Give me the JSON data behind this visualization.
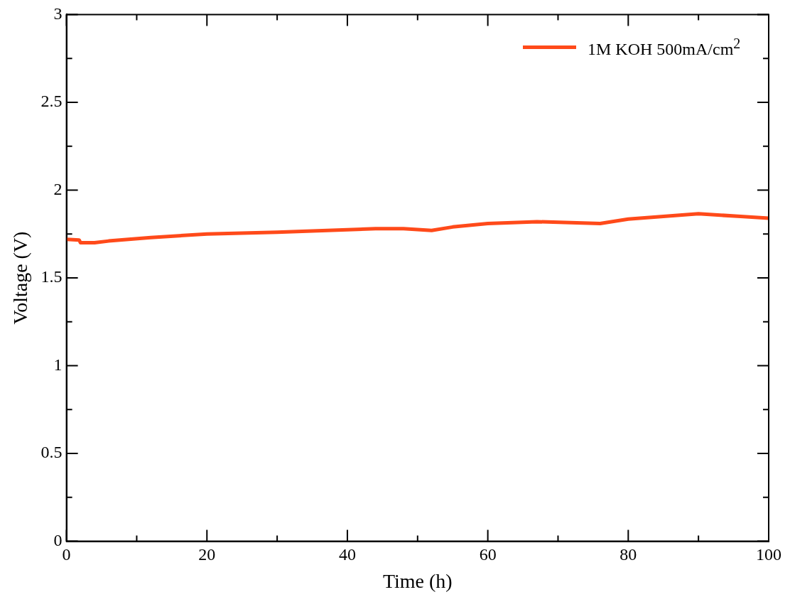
{
  "chart_data": {
    "type": "line",
    "xlabel": "Time (h)",
    "ylabel": "Voltage (V)",
    "xlim": [
      0,
      100
    ],
    "xticks": [
      0,
      {
        "value": 10,
        "label": null
      },
      20,
      {
        "value": 30,
        "label": null
      },
      40,
      {
        "value": 50,
        "label": null
      },
      60,
      {
        "value": 70,
        "label": null
      },
      80,
      {
        "value": 90,
        "label": null
      },
      100
    ],
    "ylim": [
      0,
      3
    ],
    "yticks": [
      0,
      {
        "value": 0.25,
        "label": null
      },
      0.5,
      {
        "value": 0.75,
        "label": null
      },
      1,
      {
        "value": 1.25,
        "label": null
      },
      1.5,
      {
        "value": 1.75,
        "label": null
      },
      2,
      {
        "value": 2.25,
        "label": null
      },
      2.5,
      {
        "value": 2.75,
        "label": null
      },
      3
    ],
    "grid": false,
    "legend": "top right",
    "marker": "none",
    "line_style": "solid",
    "series": [
      {
        "name": "1M KOH 500mA/cm$^{2}$",
        "color": "#ff4a1a",
        "x": [
          0,
          1.8,
          2,
          4,
          6,
          12,
          20,
          30,
          44,
          48,
          52,
          55,
          60,
          67,
          76,
          80,
          90,
          96,
          100
        ],
        "values": [
          1.72,
          1.716,
          1.7,
          1.7,
          1.71,
          1.73,
          1.75,
          1.76,
          1.78,
          1.78,
          1.77,
          1.79,
          1.81,
          1.82,
          1.81,
          1.835,
          1.865,
          1.85,
          1.84
        ]
      }
    ]
  }
}
